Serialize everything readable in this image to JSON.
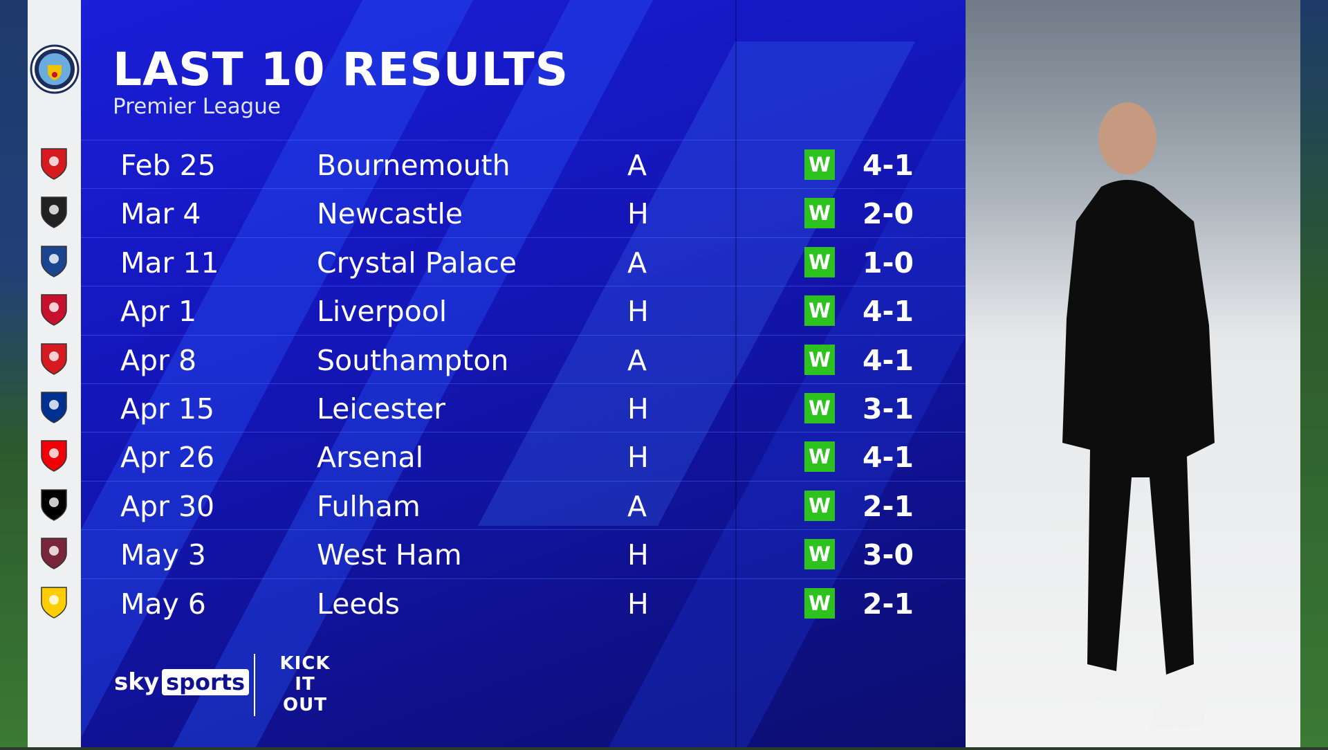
{
  "header": {
    "title": "LAST 10 RESULTS",
    "subtitle": "Premier League"
  },
  "team": {
    "crest_icon": "man-city-crest-icon"
  },
  "results": [
    {
      "date": "Feb 25",
      "opponent": "Bournemouth",
      "venue": "A",
      "result": "W",
      "score": "4-1",
      "badge_color": "#d71920"
    },
    {
      "date": "Mar 4",
      "opponent": "Newcastle",
      "venue": "H",
      "result": "W",
      "score": "2-0",
      "badge_color": "#222222"
    },
    {
      "date": "Mar 11",
      "opponent": "Crystal Palace",
      "venue": "A",
      "result": "W",
      "score": "1-0",
      "badge_color": "#1b458f"
    },
    {
      "date": "Apr 1",
      "opponent": "Liverpool",
      "venue": "H",
      "result": "W",
      "score": "4-1",
      "badge_color": "#c8102e"
    },
    {
      "date": "Apr 8",
      "opponent": "Southampton",
      "venue": "A",
      "result": "W",
      "score": "4-1",
      "badge_color": "#d71920"
    },
    {
      "date": "Apr 15",
      "opponent": "Leicester",
      "venue": "H",
      "result": "W",
      "score": "3-1",
      "badge_color": "#003090"
    },
    {
      "date": "Apr 26",
      "opponent": "Arsenal",
      "venue": "H",
      "result": "W",
      "score": "4-1",
      "badge_color": "#ef0107"
    },
    {
      "date": "Apr 30",
      "opponent": "Fulham",
      "venue": "A",
      "result": "W",
      "score": "2-1",
      "badge_color": "#000000"
    },
    {
      "date": "May 3",
      "opponent": "West Ham",
      "venue": "H",
      "result": "W",
      "score": "3-0",
      "badge_color": "#7a263a"
    },
    {
      "date": "May 6",
      "opponent": "Leeds",
      "venue": "H",
      "result": "W",
      "score": "2-1",
      "badge_color": "#ffcd00"
    }
  ],
  "colors": {
    "panel": "#1416b8",
    "win": "#2ec21e"
  },
  "footer": {
    "sky": "sky",
    "sports": "sports",
    "kick_it_out": "KICK IT OUT"
  }
}
